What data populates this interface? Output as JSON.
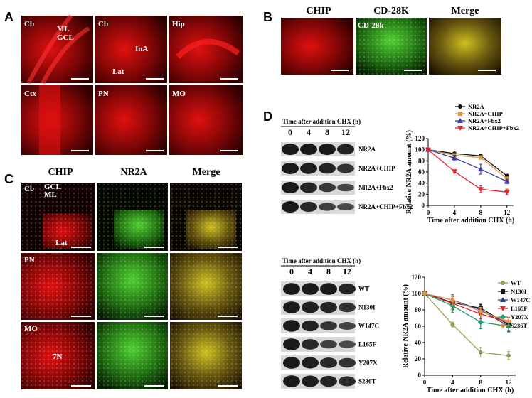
{
  "figure": {
    "panel_a": {
      "letter": "A",
      "images": [
        [
          "Cb",
          "ML",
          "GCL"
        ],
        [
          "Cb",
          "InA",
          "Lat"
        ],
        [
          "Hip"
        ],
        [
          "Ctx"
        ],
        [
          "PN"
        ],
        [
          "MO"
        ]
      ]
    },
    "panel_b": {
      "letter": "B",
      "columns": [
        "CHIP",
        "CD-28K",
        "Merge"
      ],
      "image_label": "CD-28k"
    },
    "panel_c": {
      "letter": "C",
      "columns": [
        "CHIP",
        "NR2A",
        "Merge"
      ],
      "rows": [
        [
          "Cb",
          "GCL",
          "ML",
          "Lat"
        ],
        [
          "PN"
        ],
        [
          "MO",
          "7N"
        ]
      ]
    },
    "panel_d": {
      "letter": "D",
      "blots": [
        {
          "header": "Time after addition CHX (h)",
          "lanes": [
            "0",
            "4",
            "8",
            "12"
          ],
          "rows": [
            "NR2A",
            "NR2A+CHIP",
            "NR2A+Fbx2",
            "NR2A+CHIP+Fbx2"
          ]
        },
        {
          "header": "Time after addition CHX (h)",
          "lanes": [
            "0",
            "4",
            "8",
            "12"
          ],
          "rows": [
            "WT",
            "N130I",
            "W147C",
            "L165F",
            "Y207X",
            "S236T"
          ]
        }
      ]
    }
  },
  "chart_data": [
    {
      "type": "line",
      "xlabel": "Time after addition CHX (h)",
      "ylabel": "Relative NR2A amount (%)",
      "x": [
        0,
        4,
        8,
        12
      ],
      "xlim": [
        0,
        13
      ],
      "xticks": [
        0,
        4,
        8,
        12
      ],
      "ylim": [
        0,
        120
      ],
      "yticks": [
        0,
        20,
        40,
        60,
        80,
        100,
        120
      ],
      "series": [
        {
          "name": "NR2A",
          "color": "#111111",
          "marker": "circle",
          "values": [
            100,
            93,
            89,
            53
          ],
          "errors": [
            0,
            2,
            3,
            3
          ]
        },
        {
          "name": "NR2A+CHIP",
          "color": "#d4954a",
          "marker": "square",
          "values": [
            100,
            90,
            86,
            48
          ],
          "errors": [
            0,
            2,
            3,
            3
          ]
        },
        {
          "name": "NR2A+Fbx2",
          "color": "#3a3aa0",
          "marker": "triangle",
          "values": [
            100,
            85,
            65,
            43
          ],
          "errors": [
            0,
            5,
            9,
            4
          ]
        },
        {
          "name": "NR2A+CHIP+Fbx2",
          "color": "#e8212a",
          "marker": "triangle-down",
          "values": [
            100,
            61,
            29,
            24
          ],
          "errors": [
            0,
            3,
            6,
            5
          ]
        }
      ]
    },
    {
      "type": "line",
      "xlabel": "Time after addition CHX (h)",
      "ylabel": "Relative NR2A amount (%)",
      "x": [
        0,
        4,
        8,
        12
      ],
      "xlim": [
        0,
        13
      ],
      "xticks": [
        0,
        4,
        8,
        12
      ],
      "ylim": [
        0,
        120
      ],
      "yticks": [
        0,
        20,
        40,
        60,
        80,
        100,
        120
      ],
      "series": [
        {
          "name": "WT",
          "color": "#9a9a50",
          "marker": "circle",
          "values": [
            100,
            62,
            28,
            24
          ],
          "errors": [
            0,
            3,
            6,
            5
          ]
        },
        {
          "name": "N130I",
          "color": "#111111",
          "marker": "square",
          "values": [
            100,
            89,
            82,
            62
          ],
          "errors": [
            0,
            8,
            5,
            8
          ]
        },
        {
          "name": "W147C",
          "color": "#2a3a8a",
          "marker": "triangle",
          "values": [
            100,
            92,
            80,
            60
          ],
          "errors": [
            0,
            7,
            6,
            7
          ]
        },
        {
          "name": "L165F",
          "color": "#e8212a",
          "marker": "triangle-down",
          "values": [
            100,
            88,
            75,
            65
          ],
          "errors": [
            0,
            8,
            6,
            6
          ]
        },
        {
          "name": "Y207X",
          "color": "#1a9a6a",
          "marker": "diamond",
          "values": [
            100,
            85,
            65,
            60
          ],
          "errors": [
            0,
            8,
            8,
            6
          ]
        },
        {
          "name": "S236T",
          "color": "#d4954a",
          "marker": "circle",
          "values": [
            100,
            92,
            78,
            66
          ],
          "errors": [
            0,
            6,
            5,
            5
          ]
        }
      ]
    }
  ]
}
